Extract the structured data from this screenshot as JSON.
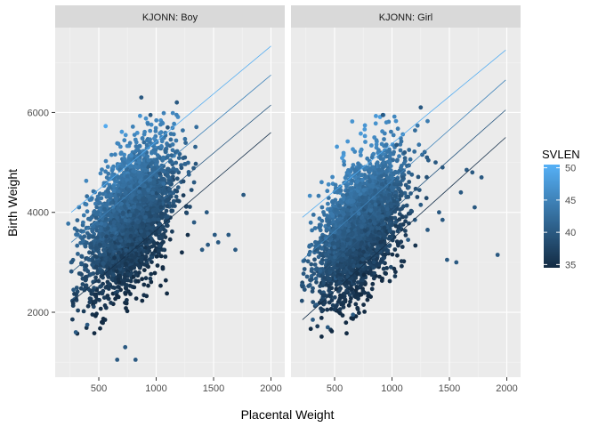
{
  "chart_data": {
    "type": "scatter",
    "xlabel": "Placental Weight",
    "ylabel": "Birth Weight",
    "xlim": [
      120,
      2120
    ],
    "ylim": [
      700,
      7700
    ],
    "x_ticks": [
      500,
      1000,
      1500,
      2000
    ],
    "x_tick_labels": [
      "500",
      "1000",
      "1500",
      "2000"
    ],
    "y_ticks": [
      2000,
      4000,
      6000
    ],
    "y_tick_labels": [
      "2000",
      "4000",
      "6000"
    ],
    "grid": true,
    "legend": {
      "title": "SVLEN",
      "placement": "right",
      "min": 34.5,
      "max": 50.5,
      "ticks": [
        35,
        40,
        45,
        50
      ],
      "tick_labels": [
        "35",
        "40",
        "45",
        "50"
      ],
      "low_color": "#132B43",
      "high_color": "#56B1F7"
    },
    "panels": [
      {
        "strip": "KJONN: Boy",
        "cloud": {
          "x_center": 780,
          "y_center": 3900,
          "x_spread": 190,
          "y_spread": 620,
          "slope": 1.9,
          "n": 3000
        },
        "outliers": [
          {
            "x": 870,
            "y": 6300
          },
          {
            "x": 1180,
            "y": 6200
          },
          {
            "x": 950,
            "y": 5950
          },
          {
            "x": 1100,
            "y": 5700
          },
          {
            "x": 1250,
            "y": 5100
          },
          {
            "x": 1330,
            "y": 4600
          },
          {
            "x": 1440,
            "y": 4000
          },
          {
            "x": 1760,
            "y": 4350
          },
          {
            "x": 1510,
            "y": 3550
          },
          {
            "x": 1540,
            "y": 3400
          },
          {
            "x": 1630,
            "y": 3550
          },
          {
            "x": 1400,
            "y": 3250
          },
          {
            "x": 1690,
            "y": 3250
          },
          {
            "x": 1450,
            "y": 3350
          },
          {
            "x": 1330,
            "y": 3800
          },
          {
            "x": 730,
            "y": 1300
          },
          {
            "x": 660,
            "y": 1050
          },
          {
            "x": 820,
            "y": 1050
          },
          {
            "x": 300,
            "y": 1600
          },
          {
            "x": 280,
            "y": 2450
          },
          {
            "x": 260,
            "y": 3000
          },
          {
            "x": 400,
            "y": 1750
          }
        ],
        "lines": [
          {
            "svlen": 35,
            "x": [
              260,
              2000
            ],
            "y": [
              2200,
              5600
            ]
          },
          {
            "svlen": 40,
            "x": [
              260,
              2000
            ],
            "y": [
              2800,
              6150
            ]
          },
          {
            "svlen": 45,
            "x": [
              260,
              2000
            ],
            "y": [
              3400,
              6750
            ]
          },
          {
            "svlen": 50,
            "x": [
              260,
              2000
            ],
            "y": [
              4000,
              7330
            ]
          }
        ]
      },
      {
        "strip": "KJONN: Girl",
        "cloud": {
          "x_center": 730,
          "y_center": 3700,
          "x_spread": 180,
          "y_spread": 600,
          "slope": 1.9,
          "n": 3000
        },
        "outliers": [
          {
            "x": 1250,
            "y": 6100
          },
          {
            "x": 920,
            "y": 5950
          },
          {
            "x": 1040,
            "y": 5350
          },
          {
            "x": 1110,
            "y": 5200
          },
          {
            "x": 1380,
            "y": 5000
          },
          {
            "x": 1440,
            "y": 4900
          },
          {
            "x": 1650,
            "y": 4850
          },
          {
            "x": 1700,
            "y": 4800
          },
          {
            "x": 1780,
            "y": 4700
          },
          {
            "x": 1600,
            "y": 4400
          },
          {
            "x": 1720,
            "y": 4100
          },
          {
            "x": 1410,
            "y": 4000
          },
          {
            "x": 1250,
            "y": 4150
          },
          {
            "x": 1440,
            "y": 3850
          },
          {
            "x": 1200,
            "y": 3850
          },
          {
            "x": 1310,
            "y": 3650
          },
          {
            "x": 1480,
            "y": 3050
          },
          {
            "x": 1560,
            "y": 3000
          },
          {
            "x": 1920,
            "y": 3150
          },
          {
            "x": 1140,
            "y": 3450
          },
          {
            "x": 440,
            "y": 1700
          },
          {
            "x": 310,
            "y": 1850
          },
          {
            "x": 340,
            "y": 2150
          },
          {
            "x": 660,
            "y": 1950
          }
        ],
        "lines": [
          {
            "svlen": 35,
            "x": [
              220,
              1990
            ],
            "y": [
              1850,
              5500
            ]
          },
          {
            "svlen": 40,
            "x": [
              220,
              1990
            ],
            "y": [
              2450,
              6050
            ]
          },
          {
            "svlen": 45,
            "x": [
              220,
              1990
            ],
            "y": [
              3050,
              6650
            ]
          },
          {
            "svlen": 50,
            "x": [
              220,
              1990
            ],
            "y": [
              3900,
              7250
            ]
          }
        ]
      }
    ]
  }
}
